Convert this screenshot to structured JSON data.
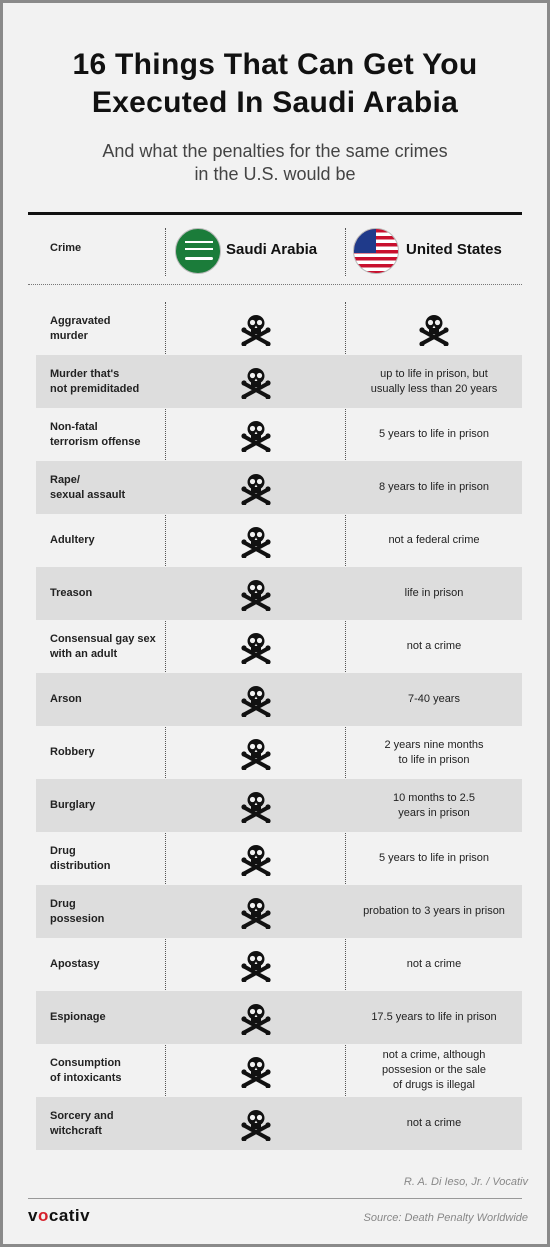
{
  "title": "16 Things That Can Get You\nExecuted In Saudi Arabia",
  "subtitle": "And what the penalties for the same crimes\nin the U.S. would be",
  "header": {
    "crime_label": "Crime",
    "saudi_label": "Saudi Arabia",
    "us_label": "United States"
  },
  "icons": {
    "saudi_flag": "saudi-arabia-flag-icon",
    "us_flag": "united-states-flag-icon",
    "penalty": "skull-and-crossbones-icon"
  },
  "colors": {
    "saudi_green": "#1b7c3a",
    "us_red": "#c8102e",
    "us_blue": "#1f3a8a",
    "logo_accent": "#d51f2a",
    "row_shade": "#dddddd",
    "background": "#f2f2f2"
  },
  "rows": [
    {
      "crime": "Aggravated\nmurder",
      "saudi": "death",
      "us": "",
      "us_death": true
    },
    {
      "crime": "Murder that's\nnot premiditaded",
      "saudi": "death",
      "us": "up to life in prison, but\nusually less than 20 years"
    },
    {
      "crime": "Non-fatal\nterrorism offense",
      "saudi": "death",
      "us": "5 years to life in prison"
    },
    {
      "crime": "Rape/\nsexual assault",
      "saudi": "death",
      "us": "8 years to life in prison"
    },
    {
      "crime": "Adultery",
      "saudi": "death",
      "us": "not a federal crime"
    },
    {
      "crime": "Treason",
      "saudi": "death",
      "us": "life in prison"
    },
    {
      "crime": "Consensual gay sex\nwith an adult",
      "saudi": "death",
      "us": "not a crime"
    },
    {
      "crime": "Arson",
      "saudi": "death",
      "us": "7-40 years"
    },
    {
      "crime": "Robbery",
      "saudi": "death",
      "us": "2 years nine months\nto life in prison"
    },
    {
      "crime": "Burglary",
      "saudi": "death",
      "us": "10 months to 2.5\nyears in prison"
    },
    {
      "crime": "Drug\ndistribution",
      "saudi": "death",
      "us": "5 years to life in prison"
    },
    {
      "crime": "Drug\npossesion",
      "saudi": "death",
      "us": "probation to 3 years in prison"
    },
    {
      "crime": "Apostasy",
      "saudi": "death",
      "us": "not a crime"
    },
    {
      "crime": "Espionage",
      "saudi": "death",
      "us": "17.5 years to life in prison"
    },
    {
      "crime": "Consumption\nof intoxicants",
      "saudi": "death",
      "us": "not a crime, although\npossesion or the sale\nof drugs is illegal"
    },
    {
      "crime": "Sorcery and\nwitchcraft",
      "saudi": "death",
      "us": "not a crime"
    }
  ],
  "footer": {
    "credit": "R. A. Di Ieso, Jr.  / Vocativ",
    "logo_prefix": "v",
    "logo_accent": "o",
    "logo_suffix": "cativ",
    "source": "Source: Death Penalty Worldwide"
  }
}
